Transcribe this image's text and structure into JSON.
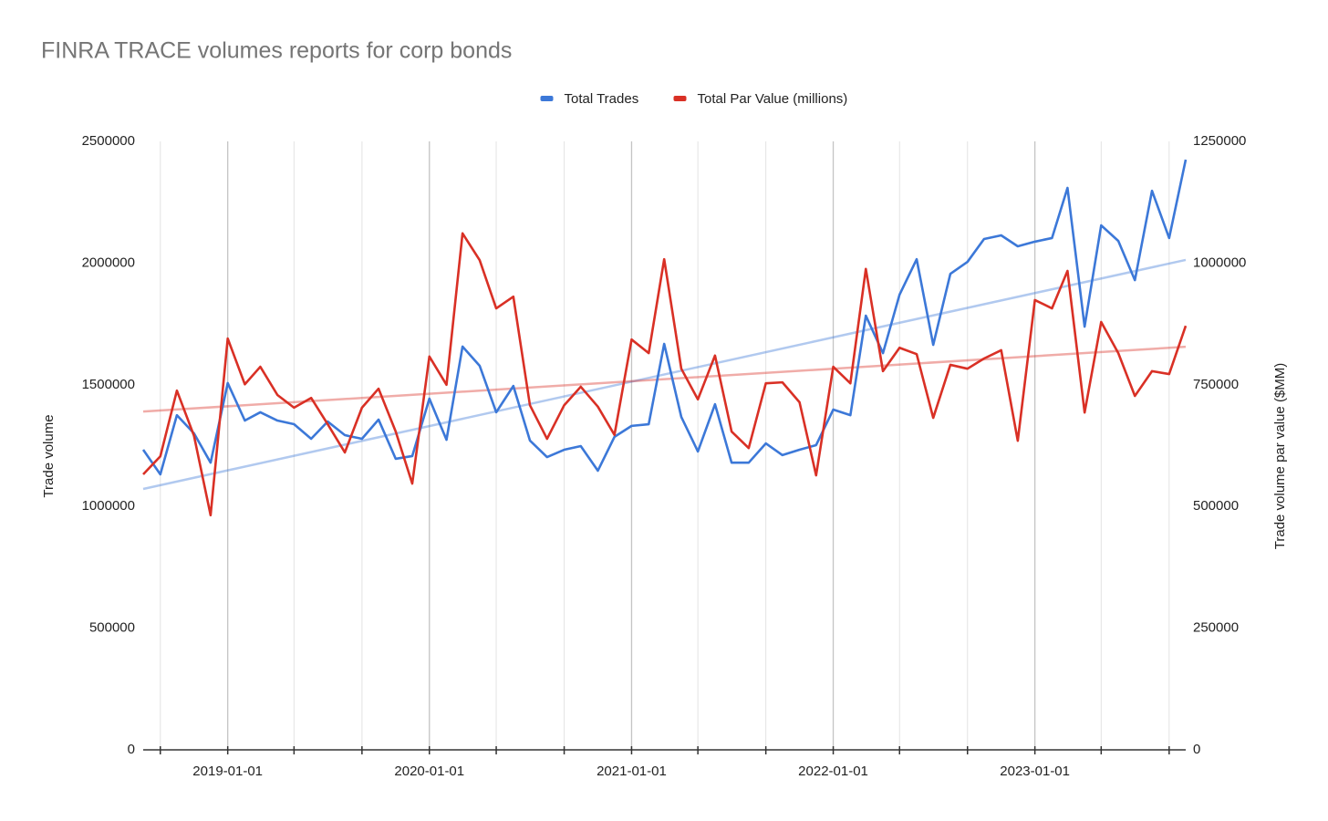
{
  "chart_data": {
    "type": "line",
    "title": "FINRA TRACE volumes reports for corp bonds",
    "y_label": "Trade volume",
    "y2_label": "Trade volume par value ($MM)",
    "x": [
      "2018-08-01",
      "2018-09-01",
      "2018-10-01",
      "2018-11-01",
      "2018-12-01",
      "2019-01-01",
      "2019-02-01",
      "2019-03-01",
      "2019-04-01",
      "2019-05-01",
      "2019-06-01",
      "2019-07-01",
      "2019-08-01",
      "2019-09-01",
      "2019-10-01",
      "2019-11-01",
      "2019-12-01",
      "2020-01-01",
      "2020-02-01",
      "2020-03-01",
      "2020-04-01",
      "2020-05-01",
      "2020-06-01",
      "2020-07-01",
      "2020-08-01",
      "2020-09-01",
      "2020-10-01",
      "2020-11-01",
      "2020-12-01",
      "2021-01-01",
      "2021-02-01",
      "2021-03-01",
      "2021-04-01",
      "2021-05-01",
      "2021-06-01",
      "2021-07-01",
      "2021-08-01",
      "2021-09-01",
      "2021-10-01",
      "2021-11-01",
      "2021-12-01",
      "2022-01-01",
      "2022-02-01",
      "2022-03-01",
      "2022-04-01",
      "2022-05-01",
      "2022-06-01",
      "2022-07-01",
      "2022-08-01",
      "2022-09-01",
      "2022-10-01",
      "2022-11-01",
      "2022-12-01",
      "2023-01-01",
      "2023-02-01",
      "2023-03-01",
      "2023-04-01",
      "2023-05-01",
      "2023-06-01",
      "2023-07-01",
      "2023-08-01",
      "2023-09-01",
      "2023-10-01"
    ],
    "series": [
      {
        "name": "Total Trades",
        "color": "#3c78d8",
        "axis": "y",
        "values": [
          1233000,
          1132000,
          1375000,
          1300000,
          1180000,
          1507000,
          1353000,
          1387000,
          1353000,
          1338000,
          1278000,
          1349000,
          1293000,
          1278000,
          1357000,
          1196000,
          1207000,
          1443000,
          1274000,
          1657000,
          1578000,
          1387000,
          1495000,
          1271000,
          1203000,
          1233000,
          1248000,
          1147000,
          1286000,
          1331000,
          1338000,
          1668000,
          1368000,
          1226000,
          1420000,
          1180000,
          1180000,
          1259000,
          1211000,
          1233000,
          1252000,
          1398000,
          1375000,
          1784000,
          1630000,
          1870000,
          2016000,
          1664000,
          1956000,
          2005000,
          2099000,
          2114000,
          2069000,
          2088000,
          2103000,
          2309000,
          1739000,
          2155000,
          2091000,
          1930000,
          2297000,
          2103000,
          2425000
        ],
        "trendline": [
          1072000,
          2013000
        ]
      },
      {
        "name": "Total Par Value (millions)",
        "color": "#d93025",
        "axis": "y2",
        "values": [
          566000,
          603000,
          738000,
          645000,
          482000,
          845000,
          751000,
          787000,
          729000,
          703000,
          723000,
          669000,
          611000,
          703000,
          742000,
          654000,
          547000,
          808000,
          750000,
          1061000,
          1006000,
          907000,
          931000,
          708000,
          639000,
          708000,
          746000,
          705000,
          647000,
          843000,
          815000,
          1008000,
          783000,
          720000,
          810000,
          654000,
          620000,
          753000,
          755000,
          714000,
          564000,
          787000,
          753000,
          988000,
          778000,
          826000,
          813000,
          682000,
          791000,
          783000,
          804000,
          821000,
          635000,
          924000,
          907000,
          984000,
          693000,
          879000,
          815000,
          727000,
          778000,
          772000,
          871000
        ],
        "trendline": [
          695000,
          828000
        ]
      }
    ],
    "xlim": [
      "2018-08-01",
      "2023-10-01"
    ],
    "xticks": [
      "2019-01-01",
      "2020-01-01",
      "2021-01-01",
      "2022-01-01",
      "2023-01-01"
    ],
    "x_minor_ticks": [
      "2018-09-01",
      "2019-05-01",
      "2019-09-01",
      "2020-05-01",
      "2020-09-01",
      "2021-05-01",
      "2021-09-01",
      "2022-05-01",
      "2022-09-01",
      "2023-05-01",
      "2023-09-01"
    ],
    "ylim": [
      0,
      2500000
    ],
    "yticks": [
      0,
      500000,
      1000000,
      1500000,
      2000000,
      2500000
    ],
    "y2lim": [
      0,
      1250000
    ],
    "y2ticks": [
      0,
      250000,
      500000,
      750000,
      1000000,
      1250000
    ],
    "legend": "top",
    "grid": true
  }
}
